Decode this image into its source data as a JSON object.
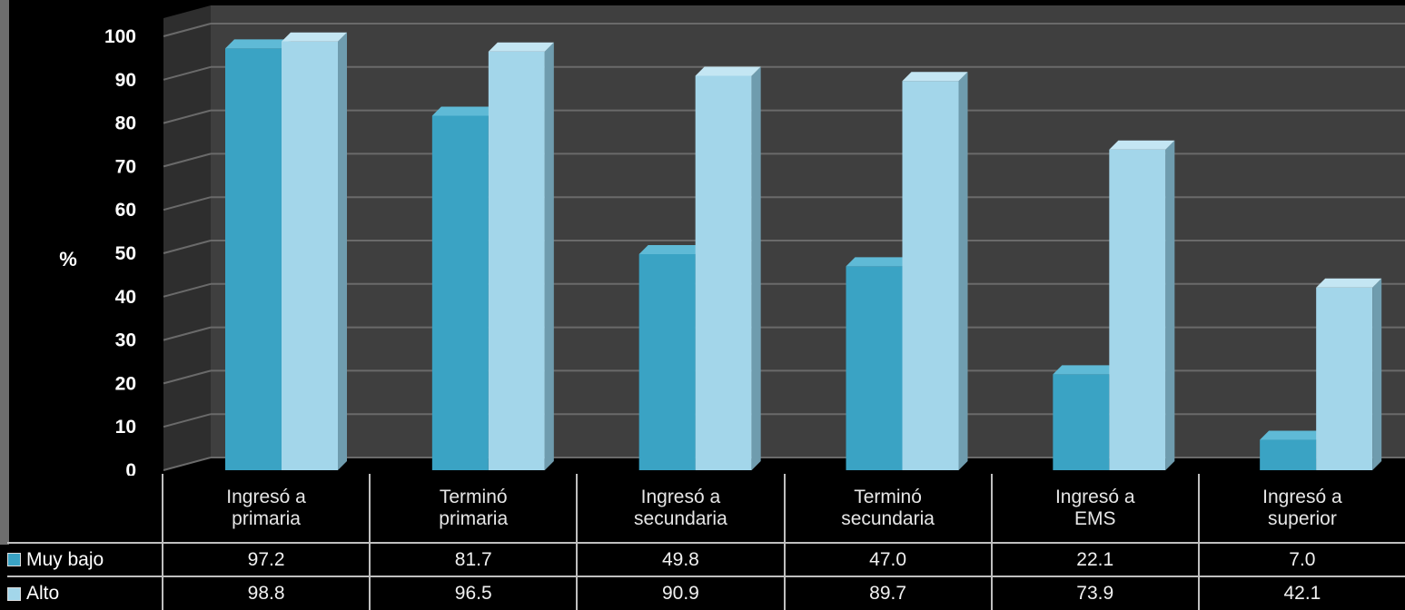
{
  "colors": {
    "muy_bajo": "#3aa3c4",
    "alto": "#a3d6ea",
    "plot_bg": "#3f3f3f",
    "grid": "#6a6a6a"
  },
  "chart_data": {
    "type": "bar",
    "categories": [
      [
        "Ingresó a",
        "primaria"
      ],
      [
        "Terminó",
        "primaria"
      ],
      [
        "Ingresó a",
        "secundaria"
      ],
      [
        "Terminó",
        "secundaria"
      ],
      [
        "Ingresó a",
        "EMS"
      ],
      [
        "Ingresó a",
        "superior"
      ]
    ],
    "series": [
      {
        "name": "Muy bajo",
        "values": [
          97.2,
          81.7,
          49.8,
          47.0,
          22.1,
          7.0
        ],
        "labels": [
          "97.2",
          "81.7",
          "49.8",
          "47.0",
          "22.1",
          "7.0"
        ]
      },
      {
        "name": "Alto",
        "values": [
          98.8,
          96.5,
          90.9,
          89.7,
          73.9,
          42.1
        ],
        "labels": [
          "98.8",
          "96.5",
          "90.9",
          "89.7",
          "73.9",
          "42.1"
        ]
      }
    ],
    "ylabel": "%",
    "ylim": [
      0,
      100
    ],
    "yticks": [
      "0",
      "10",
      "20",
      "30",
      "40",
      "50",
      "60",
      "70",
      "80",
      "90",
      "100"
    ],
    "grid": true,
    "legend": "data-table"
  }
}
